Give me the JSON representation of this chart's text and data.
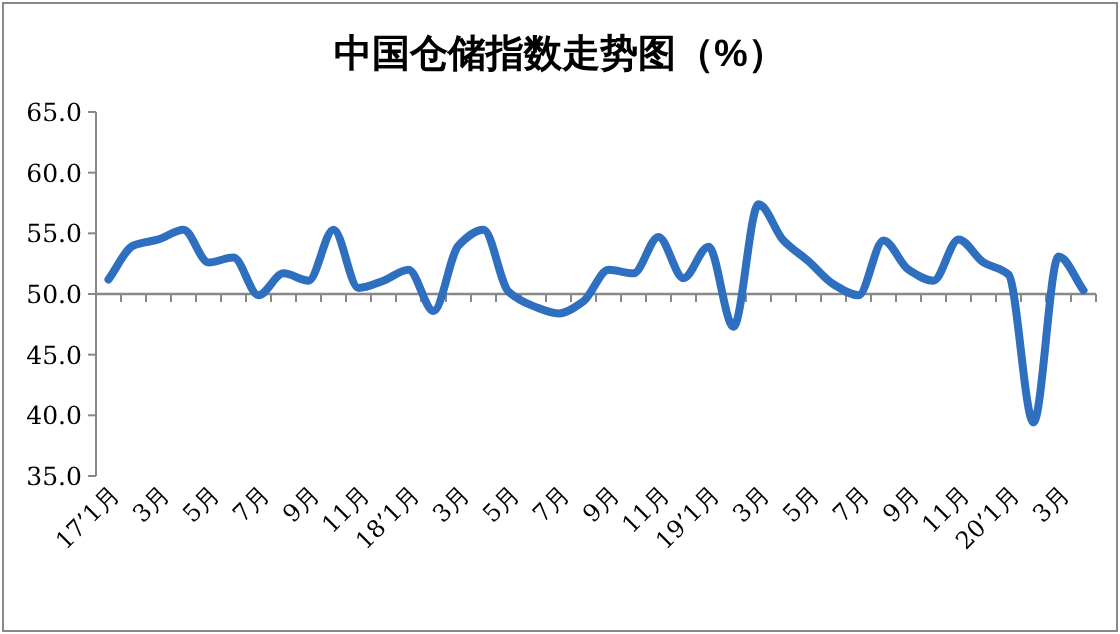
{
  "chart_data": {
    "type": "line",
    "title": "中国仓储指数走势图（%）",
    "categories": [
      "17’1月",
      null,
      "3月",
      null,
      "5月",
      null,
      "7月",
      null,
      "9月",
      null,
      "11月",
      null,
      "18’1月",
      null,
      "3月",
      null,
      "5月",
      null,
      "7月",
      null,
      "9月",
      null,
      "11月",
      null,
      "19’1月",
      null,
      "3月",
      null,
      "5月",
      null,
      "7月",
      null,
      "9月",
      null,
      "11月",
      null,
      "20’1月",
      null,
      "3月",
      null
    ],
    "series": [
      {
        "color": "#2e6fc0",
        "values": [
          51.2,
          54.0,
          54.5,
          55.3,
          52.6,
          53.0,
          49.9,
          51.7,
          51.1,
          55.3,
          50.5,
          51.1,
          52.0,
          48.6,
          54.0,
          55.3,
          50.2,
          49.0,
          48.4,
          49.4,
          52.0,
          51.7,
          54.7,
          51.3,
          53.9,
          47.3,
          57.4,
          54.4,
          52.7,
          50.8,
          49.9,
          54.4,
          52.0,
          51.1,
          54.5,
          52.6,
          51.6,
          39.4,
          53.1,
          50.3
        ]
      }
    ],
    "ylim": [
      35,
      65
    ],
    "yticks": [
      {
        "value": 35,
        "label": "35.0"
      },
      {
        "value": 40,
        "label": "40.0"
      },
      {
        "value": 45,
        "label": "45.0"
      },
      {
        "value": 50,
        "label": "50.0"
      },
      {
        "value": 55,
        "label": "55.0"
      },
      {
        "value": 60,
        "label": "60.0"
      },
      {
        "value": 65,
        "label": "65.0"
      }
    ],
    "ref_lines": [
      {
        "axis": "y",
        "value": 50
      }
    ],
    "grid": false,
    "marker": "none",
    "line_style": "solid"
  }
}
